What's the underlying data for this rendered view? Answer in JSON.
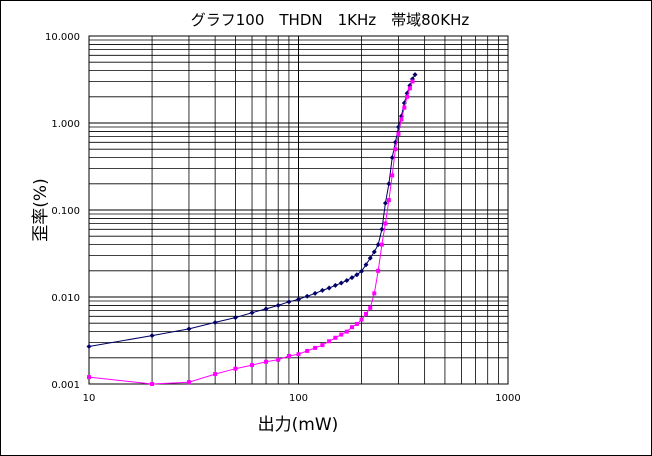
{
  "chart_data": {
    "type": "line",
    "title": "グラフ100　THDN　1KHz　帯域80KHz",
    "xlabel": "出力(mW)",
    "ylabel": "歪率(%)",
    "xscale": "log",
    "yscale": "log",
    "xlim": [
      10,
      1000
    ],
    "ylim": [
      0.001,
      10
    ],
    "x_ticks": [
      "10",
      "100",
      "1000"
    ],
    "y_ticks": [
      "0.001",
      "0.010",
      "0.100",
      "1.000",
      "10.000"
    ],
    "grid": true,
    "legend": "none",
    "series": [
      {
        "color": "#000066",
        "marker": "diamond",
        "points": [
          [
            10,
            0.0027
          ],
          [
            20,
            0.0036
          ],
          [
            30,
            0.0043
          ],
          [
            40,
            0.0051
          ],
          [
            50,
            0.0058
          ],
          [
            60,
            0.0066
          ],
          [
            70,
            0.0073
          ],
          [
            80,
            0.008
          ],
          [
            90,
            0.0088
          ],
          [
            100,
            0.0094
          ],
          [
            110,
            0.0102
          ],
          [
            120,
            0.011
          ],
          [
            130,
            0.0119
          ],
          [
            140,
            0.0127
          ],
          [
            150,
            0.0136
          ],
          [
            160,
            0.0145
          ],
          [
            170,
            0.0155
          ],
          [
            180,
            0.0167
          ],
          [
            190,
            0.018
          ],
          [
            200,
            0.0198
          ],
          [
            210,
            0.0235
          ],
          [
            220,
            0.028
          ],
          [
            230,
            0.033
          ],
          [
            240,
            0.04
          ],
          [
            250,
            0.06
          ],
          [
            260,
            0.12
          ],
          [
            270,
            0.2
          ],
          [
            280,
            0.4
          ],
          [
            290,
            0.6
          ],
          [
            300,
            0.9
          ],
          [
            310,
            1.2
          ],
          [
            320,
            1.7
          ],
          [
            330,
            2.2
          ],
          [
            340,
            2.7
          ],
          [
            350,
            3.2
          ],
          [
            360,
            3.6
          ]
        ]
      },
      {
        "color": "#ff00ff",
        "marker": "square",
        "points": [
          [
            10,
            0.0012
          ],
          [
            20,
            0.001
          ],
          [
            30,
            0.00105
          ],
          [
            40,
            0.0013
          ],
          [
            50,
            0.0015
          ],
          [
            60,
            0.00165
          ],
          [
            70,
            0.0018
          ],
          [
            80,
            0.0019
          ],
          [
            90,
            0.0021
          ],
          [
            100,
            0.0022
          ],
          [
            110,
            0.0024
          ],
          [
            120,
            0.0026
          ],
          [
            130,
            0.0028
          ],
          [
            140,
            0.0031
          ],
          [
            150,
            0.0034
          ],
          [
            160,
            0.0037
          ],
          [
            170,
            0.004
          ],
          [
            180,
            0.0045
          ],
          [
            190,
            0.0049
          ],
          [
            200,
            0.0055
          ],
          [
            210,
            0.0064
          ],
          [
            220,
            0.0075
          ],
          [
            230,
            0.011
          ],
          [
            240,
            0.02
          ],
          [
            250,
            0.04
          ],
          [
            260,
            0.07
          ],
          [
            270,
            0.13
          ],
          [
            280,
            0.25
          ],
          [
            290,
            0.5
          ],
          [
            300,
            0.75
          ],
          [
            310,
            1.1
          ],
          [
            320,
            1.5
          ],
          [
            330,
            2.0
          ],
          [
            340,
            2.5
          ],
          [
            350,
            3.0
          ]
        ]
      }
    ]
  }
}
